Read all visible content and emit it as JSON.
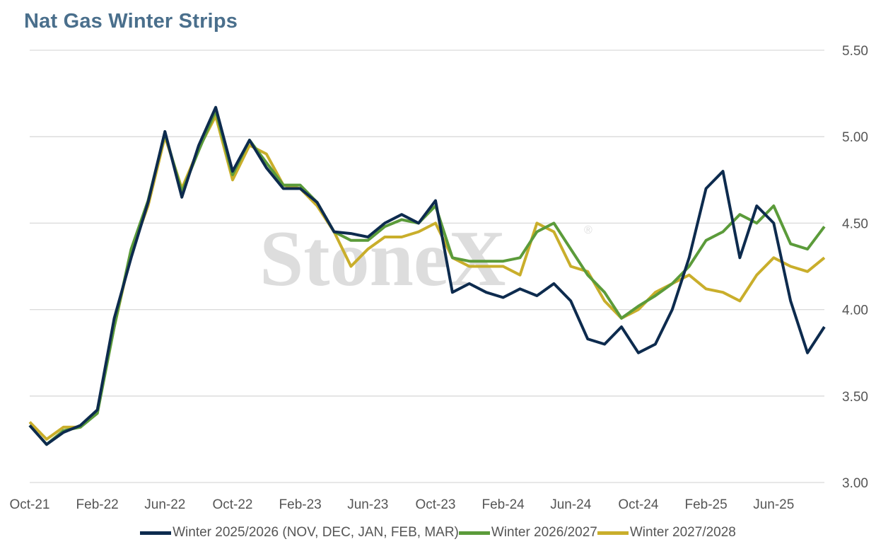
{
  "chart_data": {
    "type": "line",
    "title": "Nat Gas Winter Strips",
    "xlabel": "",
    "ylabel": "",
    "ylim": [
      3.0,
      5.5
    ],
    "yticks": [
      "3.00",
      "3.50",
      "4.00",
      "4.50",
      "5.00",
      "5.50"
    ],
    "x": [
      "Oct-21",
      "Nov-21",
      "Dec-21",
      "Jan-22",
      "Feb-22",
      "Mar-22",
      "Apr-22",
      "May-22",
      "Jun-22",
      "Jul-22",
      "Aug-22",
      "Sep-22",
      "Oct-22",
      "Nov-22",
      "Dec-22",
      "Jan-23",
      "Feb-23",
      "Mar-23",
      "Apr-23",
      "May-23",
      "Jun-23",
      "Jul-23",
      "Aug-23",
      "Sep-23",
      "Oct-23",
      "Nov-23",
      "Dec-23",
      "Jan-24",
      "Feb-24",
      "Mar-24",
      "Apr-24",
      "May-24",
      "Jun-24",
      "Jul-24",
      "Aug-24",
      "Sep-24",
      "Oct-24",
      "Nov-24",
      "Dec-24",
      "Jan-25",
      "Feb-25",
      "Mar-25",
      "Apr-25",
      "May-25",
      "Jun-25",
      "Jul-25",
      "Aug-25",
      "Sep-25"
    ],
    "xtick_labels": [
      "Oct-21",
      "Feb-22",
      "Jun-22",
      "Oct-22",
      "Feb-23",
      "Jun-23",
      "Oct-23",
      "Feb-24",
      "Jun-24",
      "Oct-24",
      "Feb-25",
      "Jun-25"
    ],
    "series": [
      {
        "name": "Winter 2025/2026 (NOV, DEC, JAN, FEB, MAR)",
        "color": "#0d2b4e",
        "values": [
          3.33,
          3.22,
          3.29,
          3.33,
          3.42,
          3.95,
          4.3,
          4.62,
          5.03,
          4.65,
          4.95,
          5.17,
          4.8,
          4.98,
          4.82,
          4.7,
          4.7,
          4.62,
          4.45,
          4.44,
          4.42,
          4.5,
          4.55,
          4.5,
          4.63,
          4.1,
          4.15,
          4.1,
          4.07,
          4.12,
          4.08,
          4.15,
          4.05,
          3.83,
          3.8,
          3.9,
          3.75,
          3.8,
          4.0,
          4.3,
          4.7,
          4.8,
          4.3,
          4.6,
          4.5,
          4.05,
          3.75,
          3.9
        ]
      },
      {
        "name": "Winter 2026/2027",
        "color": "#5b9b3a",
        "values": [
          3.33,
          3.22,
          3.3,
          3.32,
          3.4,
          3.9,
          4.35,
          4.63,
          5.02,
          4.68,
          4.92,
          5.15,
          4.78,
          4.98,
          4.85,
          4.72,
          4.72,
          4.62,
          4.45,
          4.4,
          4.4,
          4.48,
          4.52,
          4.5,
          4.6,
          4.3,
          4.28,
          4.28,
          4.28,
          4.3,
          4.45,
          4.5,
          4.35,
          4.2,
          4.1,
          3.95,
          4.02,
          4.08,
          4.15,
          4.25,
          4.4,
          4.45,
          4.55,
          4.5,
          4.6,
          4.38,
          4.35,
          4.48
        ]
      },
      {
        "name": "Winter 2027/2028",
        "color": "#c9ae2b",
        "values": [
          3.35,
          3.25,
          3.32,
          3.32,
          3.42,
          3.9,
          4.33,
          4.6,
          5.0,
          4.7,
          4.93,
          5.12,
          4.75,
          4.95,
          4.9,
          4.72,
          4.7,
          4.6,
          4.45,
          4.25,
          4.35,
          4.42,
          4.42,
          4.45,
          4.5,
          4.3,
          4.25,
          4.25,
          4.25,
          4.2,
          4.5,
          4.45,
          4.25,
          4.22,
          4.05,
          3.95,
          4.0,
          4.1,
          4.15,
          4.2,
          4.12,
          4.1,
          4.05,
          4.2,
          4.3,
          4.25,
          4.22,
          4.3
        ]
      }
    ],
    "grid": true,
    "legend_position": "bottom",
    "watermark": "StoneX"
  }
}
